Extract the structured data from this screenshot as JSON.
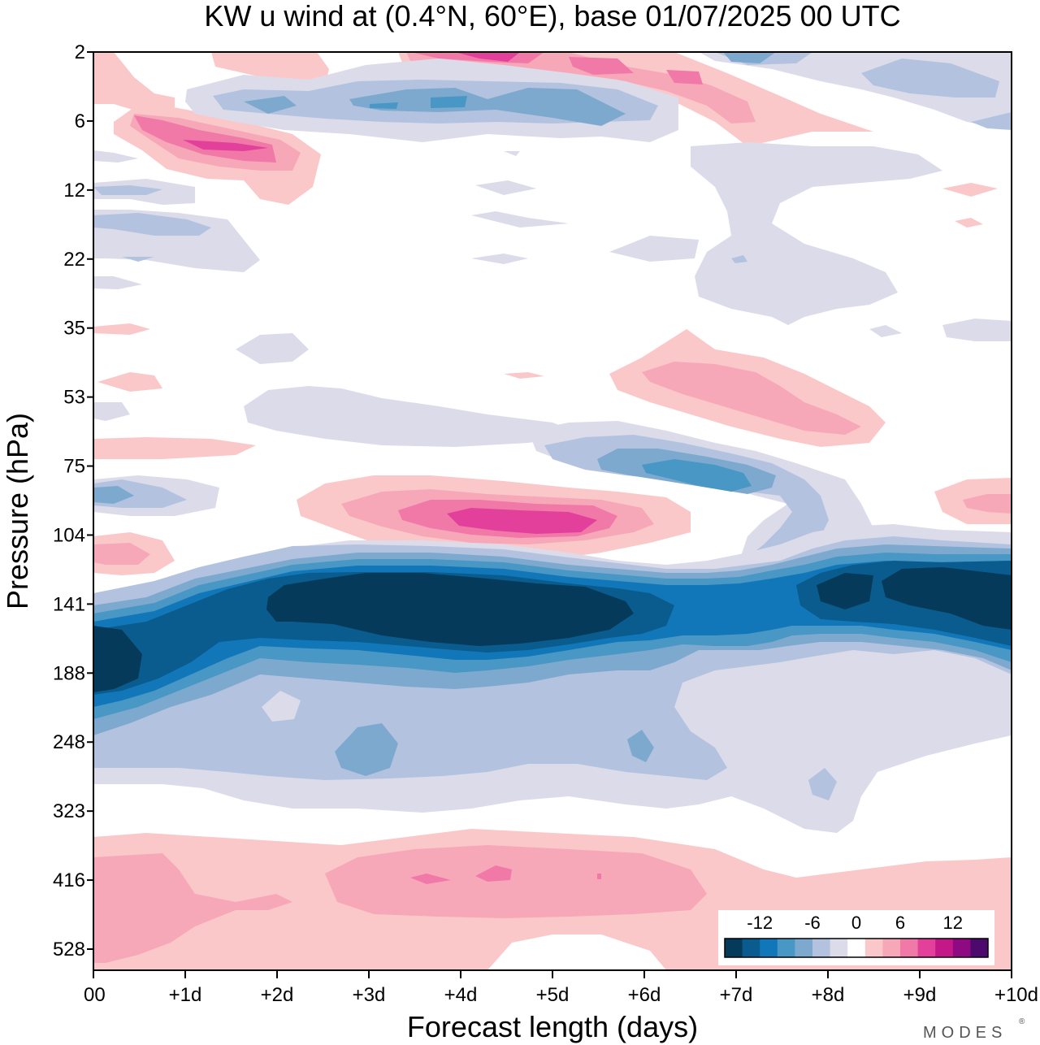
{
  "chart_data": {
    "type": "heatmap",
    "title": "KW u wind at (0.4°N, 60°E),  base 01/07/2025  00 UTC",
    "xlabel": "Forecast length (days)",
    "ylabel": "Pressure (hPa)",
    "x_ticks": [
      "00",
      "+1d",
      "+2d",
      "+3d",
      "+4d",
      "+5d",
      "+6d",
      "+7d",
      "+8d",
      "+9d",
      "+10d"
    ],
    "y_ticks": [
      "2",
      "6",
      "12",
      "22",
      "35",
      "53",
      "75",
      "104",
      "141",
      "188",
      "248",
      "323",
      "416",
      "528"
    ],
    "xlim": [
      0,
      10
    ],
    "ylim": [
      528,
      2
    ],
    "y_scale": "log-like (pressure)",
    "colorbar": {
      "tick_labels": [
        "-12",
        "-6",
        "0",
        "6",
        "12"
      ],
      "levels": [
        -16,
        -14,
        -12,
        -10,
        -8,
        -6,
        -4,
        -2,
        2,
        4,
        6,
        8,
        10,
        12,
        14,
        16
      ],
      "colors": [
        "#053a5a",
        "#0a5c8e",
        "#1177b8",
        "#4897c4",
        "#7ea9cf",
        "#b3c3df",
        "#dcdbea",
        "#ffffff",
        "#fbc8c9",
        "#f7a8b8",
        "#f079a8",
        "#e2409b",
        "#c51888",
        "#8f0a80",
        "#4b0a6c"
      ]
    },
    "features": [
      {
        "desc": "strong easterly core",
        "x_range": [
          1.9,
          6.4
        ],
        "pressure_range": [
          120,
          170
        ],
        "value": -16
      },
      {
        "desc": "strong easterly core",
        "x_range": [
          8.0,
          10.0
        ],
        "pressure_range": [
          120,
          160
        ],
        "value": -16
      },
      {
        "desc": "easterly core at start",
        "x_range": [
          0,
          0.6
        ],
        "pressure_range": [
          150,
          210
        ],
        "value": -16
      },
      {
        "desc": "westerly maximum",
        "x_range": [
          2.2,
          6.5
        ],
        "pressure_range": [
          85,
          110
        ],
        "value": 12
      },
      {
        "desc": "westerly band",
        "x_range": [
          0,
          7.0
        ],
        "pressure_range": [
          360,
          528
        ],
        "value": 6
      },
      {
        "desc": "upper westerly",
        "x_range": [
          3.4,
          8.5
        ],
        "pressure_range": [
          2,
          6
        ],
        "value": 10
      }
    ],
    "grid": false,
    "legend": "colorbar bottom-right"
  },
  "branding": {
    "watermark": "MODES"
  }
}
